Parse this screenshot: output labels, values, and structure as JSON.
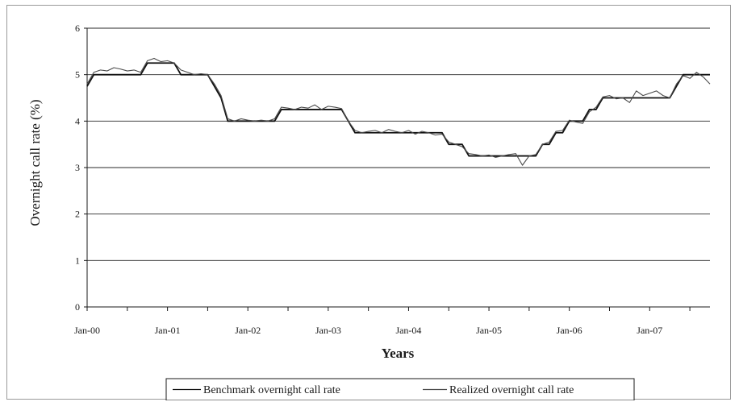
{
  "chart_data": {
    "type": "line",
    "title": "",
    "xlabel": "Years",
    "ylabel": "Overnight call rate (%)",
    "ylim": [
      0,
      6
    ],
    "yticks": [
      "0",
      "1",
      "2",
      "3",
      "4",
      "5",
      "6"
    ],
    "xticks": [
      "Jan-00",
      "Jan-01",
      "Jan-02",
      "Jan-03",
      "Jan-04",
      "Jan-05",
      "Jan-06",
      "Jan-07"
    ],
    "grid": "horizontal",
    "legend_position": "bottom",
    "series": [
      {
        "name": "Benchmark overnight call rate",
        "color": "#111111",
        "points": [
          [
            0,
            4.75
          ],
          [
            1,
            5.0
          ],
          [
            2,
            5.0
          ],
          [
            3,
            5.0
          ],
          [
            4,
            5.0
          ],
          [
            5,
            5.0
          ],
          [
            6,
            5.0
          ],
          [
            7,
            5.0
          ],
          [
            8,
            5.0
          ],
          [
            9,
            5.25
          ],
          [
            10,
            5.25
          ],
          [
            11,
            5.25
          ],
          [
            12,
            5.25
          ],
          [
            13,
            5.25
          ],
          [
            14,
            5.0
          ],
          [
            15,
            5.0
          ],
          [
            16,
            5.0
          ],
          [
            17,
            5.0
          ],
          [
            18,
            5.0
          ],
          [
            19,
            4.75
          ],
          [
            20,
            4.5
          ],
          [
            21,
            4.0
          ],
          [
            22,
            4.0
          ],
          [
            23,
            4.0
          ],
          [
            24,
            4.0
          ],
          [
            25,
            4.0
          ],
          [
            26,
            4.0
          ],
          [
            27,
            4.0
          ],
          [
            28,
            4.0
          ],
          [
            29,
            4.25
          ],
          [
            30,
            4.25
          ],
          [
            31,
            4.25
          ],
          [
            32,
            4.25
          ],
          [
            33,
            4.25
          ],
          [
            34,
            4.25
          ],
          [
            35,
            4.25
          ],
          [
            36,
            4.25
          ],
          [
            37,
            4.25
          ],
          [
            38,
            4.25
          ],
          [
            39,
            4.0
          ],
          [
            40,
            3.75
          ],
          [
            41,
            3.75
          ],
          [
            42,
            3.75
          ],
          [
            43,
            3.75
          ],
          [
            44,
            3.75
          ],
          [
            45,
            3.75
          ],
          [
            46,
            3.75
          ],
          [
            47,
            3.75
          ],
          [
            48,
            3.75
          ],
          [
            49,
            3.75
          ],
          [
            50,
            3.75
          ],
          [
            51,
            3.75
          ],
          [
            52,
            3.75
          ],
          [
            53,
            3.75
          ],
          [
            54,
            3.5
          ],
          [
            55,
            3.5
          ],
          [
            56,
            3.5
          ],
          [
            57,
            3.25
          ],
          [
            58,
            3.25
          ],
          [
            59,
            3.25
          ],
          [
            60,
            3.25
          ],
          [
            61,
            3.25
          ],
          [
            62,
            3.25
          ],
          [
            63,
            3.25
          ],
          [
            64,
            3.25
          ],
          [
            65,
            3.25
          ],
          [
            66,
            3.25
          ],
          [
            67,
            3.25
          ],
          [
            68,
            3.5
          ],
          [
            69,
            3.5
          ],
          [
            70,
            3.75
          ],
          [
            71,
            3.75
          ],
          [
            72,
            4.0
          ],
          [
            73,
            4.0
          ],
          [
            74,
            4.0
          ],
          [
            75,
            4.25
          ],
          [
            76,
            4.25
          ],
          [
            77,
            4.5
          ],
          [
            78,
            4.5
          ],
          [
            79,
            4.5
          ],
          [
            80,
            4.5
          ],
          [
            81,
            4.5
          ],
          [
            82,
            4.5
          ],
          [
            83,
            4.5
          ],
          [
            84,
            4.5
          ],
          [
            85,
            4.5
          ],
          [
            86,
            4.5
          ],
          [
            87,
            4.5
          ],
          [
            88,
            4.75
          ],
          [
            89,
            5.0
          ],
          [
            90,
            5.0
          ],
          [
            91,
            5.0
          ],
          [
            92,
            5.0
          ],
          [
            93,
            5.0
          ]
        ]
      },
      {
        "name": "Realized overnight call rate",
        "color": "#4a4a4a",
        "points": [
          [
            0,
            4.8
          ],
          [
            1,
            5.05
          ],
          [
            2,
            5.1
          ],
          [
            3,
            5.08
          ],
          [
            4,
            5.15
          ],
          [
            5,
            5.12
          ],
          [
            6,
            5.08
          ],
          [
            7,
            5.1
          ],
          [
            8,
            5.05
          ],
          [
            9,
            5.3
          ],
          [
            10,
            5.35
          ],
          [
            11,
            5.28
          ],
          [
            12,
            5.3
          ],
          [
            13,
            5.25
          ],
          [
            14,
            5.1
          ],
          [
            15,
            5.05
          ],
          [
            16,
            5.0
          ],
          [
            17,
            5.02
          ],
          [
            18,
            5.0
          ],
          [
            19,
            4.8
          ],
          [
            20,
            4.55
          ],
          [
            21,
            4.05
          ],
          [
            22,
            4.0
          ],
          [
            23,
            4.05
          ],
          [
            24,
            4.02
          ],
          [
            25,
            4.0
          ],
          [
            26,
            4.02
          ],
          [
            27,
            4.0
          ],
          [
            28,
            4.05
          ],
          [
            29,
            4.3
          ],
          [
            30,
            4.28
          ],
          [
            31,
            4.25
          ],
          [
            32,
            4.3
          ],
          [
            33,
            4.28
          ],
          [
            34,
            4.35
          ],
          [
            35,
            4.25
          ],
          [
            36,
            4.32
          ],
          [
            37,
            4.3
          ],
          [
            38,
            4.27
          ],
          [
            39,
            4.0
          ],
          [
            40,
            3.8
          ],
          [
            41,
            3.75
          ],
          [
            42,
            3.78
          ],
          [
            43,
            3.8
          ],
          [
            44,
            3.75
          ],
          [
            45,
            3.82
          ],
          [
            46,
            3.78
          ],
          [
            47,
            3.75
          ],
          [
            48,
            3.8
          ],
          [
            49,
            3.72
          ],
          [
            50,
            3.78
          ],
          [
            51,
            3.75
          ],
          [
            52,
            3.7
          ],
          [
            53,
            3.72
          ],
          [
            54,
            3.55
          ],
          [
            55,
            3.5
          ],
          [
            56,
            3.45
          ],
          [
            57,
            3.3
          ],
          [
            58,
            3.28
          ],
          [
            59,
            3.25
          ],
          [
            60,
            3.27
          ],
          [
            61,
            3.22
          ],
          [
            62,
            3.25
          ],
          [
            63,
            3.28
          ],
          [
            64,
            3.3
          ],
          [
            65,
            3.05
          ],
          [
            66,
            3.25
          ],
          [
            67,
            3.28
          ],
          [
            68,
            3.5
          ],
          [
            69,
            3.55
          ],
          [
            70,
            3.78
          ],
          [
            71,
            3.8
          ],
          [
            72,
            4.02
          ],
          [
            73,
            3.98
          ],
          [
            74,
            3.95
          ],
          [
            75,
            4.2
          ],
          [
            76,
            4.3
          ],
          [
            77,
            4.52
          ],
          [
            78,
            4.55
          ],
          [
            79,
            4.48
          ],
          [
            80,
            4.5
          ],
          [
            81,
            4.4
          ],
          [
            82,
            4.65
          ],
          [
            83,
            4.55
          ],
          [
            84,
            4.6
          ],
          [
            85,
            4.65
          ],
          [
            86,
            4.55
          ],
          [
            87,
            4.5
          ],
          [
            88,
            4.8
          ],
          [
            89,
            4.98
          ],
          [
            90,
            4.92
          ],
          [
            91,
            5.05
          ],
          [
            92,
            4.95
          ],
          [
            93,
            4.8
          ]
        ]
      }
    ]
  }
}
